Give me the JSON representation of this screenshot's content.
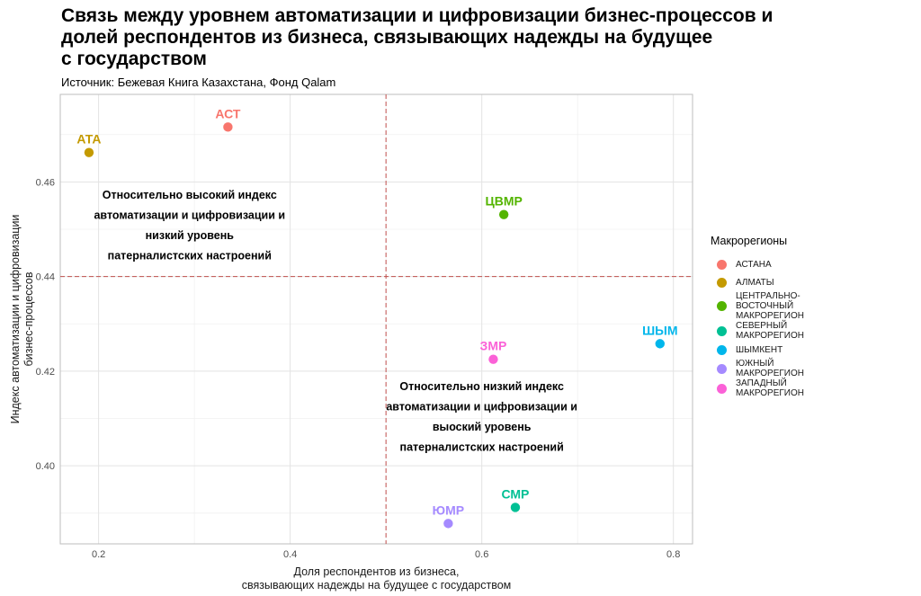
{
  "title_lines": [
    "Связь между уровнем автоматизации и цифровизации бизнес-процессов и",
    "долей респондентов из бизнеса, связывающих надежды на будущее",
    "с государством"
  ],
  "subtitle": "Источник: Бежевая Книга Казахстана, Фонд Qalam",
  "chart_data": {
    "type": "scatter",
    "xlabel_lines": [
      "Доля респондентов из бизнеса,",
      "связывающих надежды на будущее с государством"
    ],
    "ylabel_lines": [
      "Индекс автоматизации и цифровизации",
      "бизнес-процессов"
    ],
    "xlim": [
      0.16,
      0.82
    ],
    "ylim": [
      0.3835,
      0.4785
    ],
    "x_ticks": [
      0.2,
      0.4,
      0.6,
      0.8
    ],
    "x_tick_labels": [
      "0.2",
      "0.4",
      "0.6",
      "0.8"
    ],
    "y_ticks": [
      0.4,
      0.42,
      0.44,
      0.46
    ],
    "y_tick_labels": [
      "0.40",
      "0.42",
      "0.44",
      "0.46"
    ],
    "grid": true,
    "reference_lines": {
      "x": 0.5,
      "y": 0.44,
      "style": "dashed",
      "color": "#c0504d"
    },
    "points": [
      {
        "label": "АСТ",
        "region": "АСТАНА",
        "x": 0.335,
        "y": 0.4716,
        "color": "#F8766D"
      },
      {
        "label": "АТА",
        "region": "АЛМАТЫ",
        "x": 0.19,
        "y": 0.4662,
        "color": "#C49A00"
      },
      {
        "label": "ЦВМР",
        "region": "ЦЕНТРАЛЬНО-ВОСТОЧНЫЙ МАКРОРЕГИОН",
        "x": 0.623,
        "y": 0.4531,
        "color": "#53B400"
      },
      {
        "label": "СМР",
        "region": "СЕВЕРНЫЙ МАКРОРЕГИОН",
        "x": 0.635,
        "y": 0.3912,
        "color": "#00C094"
      },
      {
        "label": "ШЫМ",
        "region": "ШЫМКЕНТ",
        "x": 0.786,
        "y": 0.4258,
        "color": "#00B6EB"
      },
      {
        "label": "ЮМР",
        "region": "ЮЖНЫЙ МАКРОРЕГИОН",
        "x": 0.565,
        "y": 0.3878,
        "color": "#A58AFF"
      },
      {
        "label": "ЗМР",
        "region": "ЗАПАДНЫЙ МАКРОРЕГИОН",
        "x": 0.612,
        "y": 0.4225,
        "color": "#FB61D7"
      }
    ],
    "annotations": [
      {
        "lines": [
          "Относительно высокий индекс",
          "автоматизации и цифровизации и",
          "низкий уровень",
          "патерналистских настроений"
        ],
        "x": 0.295,
        "y": 0.4565
      },
      {
        "lines": [
          "Относительно низкий индекс",
          "автоматизации и цифровизации и",
          "выоский уровень",
          "патерналистских настроений"
        ],
        "x": 0.6,
        "y": 0.416
      }
    ],
    "legend": {
      "title": "Макрорегионы",
      "position": "right",
      "items": [
        {
          "lines": [
            "АСТАНА"
          ],
          "color": "#F8766D"
        },
        {
          "lines": [
            "АЛМАТЫ"
          ],
          "color": "#C49A00"
        },
        {
          "lines": [
            "ЦЕНТРАЛЬНО-",
            "ВОСТОЧНЫЙ",
            "МАКРОРЕГИОН"
          ],
          "color": "#53B400"
        },
        {
          "lines": [
            "СЕВЕРНЫЙ",
            "МАКРОРЕГИОН"
          ],
          "color": "#00C094"
        },
        {
          "lines": [
            "ШЫМКЕНТ"
          ],
          "color": "#00B6EB"
        },
        {
          "lines": [
            "ЮЖНЫЙ",
            "МАКРОРЕГИОН"
          ],
          "color": "#A58AFF"
        },
        {
          "lines": [
            "ЗАПАДНЫЙ",
            "МАКРОРЕГИОН"
          ],
          "color": "#FB61D7"
        }
      ]
    }
  }
}
